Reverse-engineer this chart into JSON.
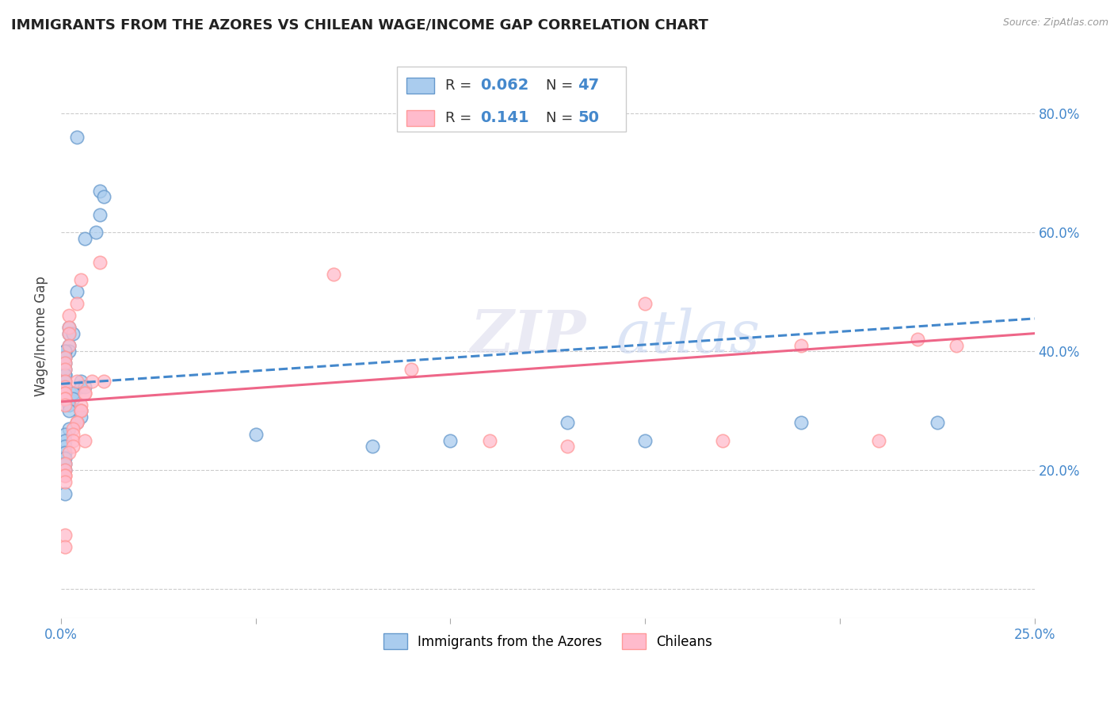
{
  "title": "IMMIGRANTS FROM THE AZORES VS CHILEAN WAGE/INCOME GAP CORRELATION CHART",
  "source": "Source: ZipAtlas.com",
  "ylabel": "Wage/Income Gap",
  "yticks": [
    0.0,
    0.2,
    0.4,
    0.6,
    0.8
  ],
  "ytick_labels": [
    "",
    "20.0%",
    "40.0%",
    "60.0%",
    "80.0%"
  ],
  "xmin": 0.0,
  "xmax": 0.25,
  "ymin": -0.05,
  "ymax": 0.9,
  "series1_label": "Immigrants from the Azores",
  "series2_label": "Chileans",
  "color1": "#6699CC",
  "color2": "#FF9999",
  "color1_fill": "#AACCEE",
  "color2_fill": "#FFBBCC",
  "trend1_color": "#4488CC",
  "trend2_color": "#EE6688",
  "watermark_zip": "ZIP",
  "watermark_atlas": "atlas",
  "r1": "0.062",
  "n1": "47",
  "r2": "0.141",
  "n2": "50",
  "azores_x": [
    0.004,
    0.01,
    0.011,
    0.01,
    0.009,
    0.006,
    0.004,
    0.002,
    0.002,
    0.003,
    0.002,
    0.002,
    0.001,
    0.001,
    0.001,
    0.001,
    0.001,
    0.001,
    0.001,
    0.001,
    0.005,
    0.005,
    0.006,
    0.003,
    0.003,
    0.003,
    0.002,
    0.002,
    0.005,
    0.005,
    0.004,
    0.002,
    0.001,
    0.001,
    0.001,
    0.001,
    0.001,
    0.001,
    0.001,
    0.001,
    0.05,
    0.08,
    0.1,
    0.13,
    0.15,
    0.19,
    0.225
  ],
  "azores_y": [
    0.76,
    0.67,
    0.66,
    0.63,
    0.6,
    0.59,
    0.5,
    0.44,
    0.43,
    0.43,
    0.41,
    0.4,
    0.4,
    0.4,
    0.39,
    0.38,
    0.37,
    0.36,
    0.36,
    0.35,
    0.35,
    0.34,
    0.34,
    0.33,
    0.33,
    0.32,
    0.31,
    0.3,
    0.3,
    0.29,
    0.28,
    0.27,
    0.26,
    0.25,
    0.24,
    0.23,
    0.22,
    0.21,
    0.2,
    0.16,
    0.26,
    0.24,
    0.25,
    0.28,
    0.25,
    0.28,
    0.28
  ],
  "chilean_x": [
    0.004,
    0.011,
    0.008,
    0.01,
    0.005,
    0.004,
    0.002,
    0.002,
    0.002,
    0.002,
    0.001,
    0.001,
    0.001,
    0.001,
    0.001,
    0.001,
    0.001,
    0.001,
    0.001,
    0.001,
    0.005,
    0.005,
    0.005,
    0.004,
    0.004,
    0.003,
    0.003,
    0.003,
    0.003,
    0.002,
    0.006,
    0.006,
    0.006,
    0.001,
    0.001,
    0.001,
    0.001,
    0.001,
    0.001,
    0.001,
    0.07,
    0.09,
    0.11,
    0.13,
    0.15,
    0.17,
    0.19,
    0.21,
    0.22,
    0.23
  ],
  "chilean_y": [
    0.35,
    0.35,
    0.35,
    0.55,
    0.52,
    0.48,
    0.46,
    0.44,
    0.43,
    0.41,
    0.39,
    0.38,
    0.37,
    0.35,
    0.34,
    0.33,
    0.33,
    0.32,
    0.32,
    0.31,
    0.31,
    0.3,
    0.3,
    0.28,
    0.28,
    0.27,
    0.26,
    0.25,
    0.24,
    0.23,
    0.25,
    0.33,
    0.33,
    0.21,
    0.2,
    0.19,
    0.19,
    0.18,
    0.09,
    0.07,
    0.53,
    0.37,
    0.25,
    0.24,
    0.48,
    0.25,
    0.41,
    0.25,
    0.42,
    0.41
  ]
}
